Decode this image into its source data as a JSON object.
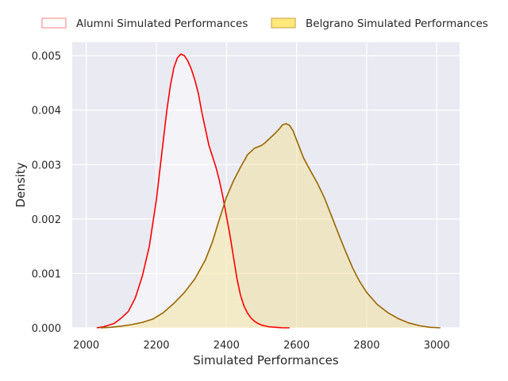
{
  "chart_data": {
    "type": "area",
    "title": "",
    "xlabel": "Simulated Performances",
    "ylabel": "Density",
    "xlim": [
      1960,
      3065
    ],
    "ylim": [
      0,
      0.00525
    ],
    "xticks": [
      2000,
      2200,
      2400,
      2600,
      2800,
      3000
    ],
    "yticks": [
      0.0,
      0.001,
      0.002,
      0.003,
      0.004,
      0.005
    ],
    "xtick_labels": [
      "2000",
      "2200",
      "2400",
      "2600",
      "2800",
      "3000"
    ],
    "ytick_labels": [
      "0.000",
      "0.001",
      "0.002",
      "0.003",
      "0.004",
      "0.005"
    ],
    "grid": true,
    "legend_position": "top",
    "series": [
      {
        "name": "Alumni Simulated Performances",
        "line_color": "#ff0000",
        "fill_color": "#ffffff",
        "fill_opacity": 0.45,
        "legend_edge_color": "#ff7f7f",
        "legend_face_color": "#ffffff",
        "x": [
          2030,
          2050,
          2080,
          2100,
          2120,
          2140,
          2160,
          2180,
          2200,
          2210,
          2220,
          2230,
          2240,
          2250,
          2260,
          2270,
          2280,
          2290,
          2300,
          2310,
          2320,
          2330,
          2340,
          2350,
          2360,
          2370,
          2380,
          2390,
          2400,
          2410,
          2420,
          2430,
          2440,
          2450,
          2460,
          2470,
          2480,
          2490,
          2500,
          2520,
          2540,
          2560,
          2580
        ],
        "y": [
          0.0,
          2e-05,
          8e-05,
          0.00018,
          0.0003,
          0.00055,
          0.00095,
          0.0015,
          0.00235,
          0.0029,
          0.00345,
          0.004,
          0.00445,
          0.00478,
          0.00496,
          0.00503,
          0.005,
          0.0049,
          0.00475,
          0.00455,
          0.0043,
          0.00395,
          0.00365,
          0.00335,
          0.00315,
          0.00295,
          0.0027,
          0.0024,
          0.00205,
          0.0017,
          0.0013,
          0.0009,
          0.0006,
          0.0004,
          0.00027,
          0.00018,
          0.00012,
          8e-05,
          5e-05,
          2e-05,
          1e-05,
          0.0,
          0.0
        ]
      },
      {
        "name": "Belgrano Simulated Performances",
        "line_color": "#996600",
        "fill_color": "#f5e08c",
        "fill_opacity": 0.45,
        "legend_edge_color": "#c8a040",
        "legend_face_color": "#ffe87c",
        "x": [
          2040,
          2070,
          2100,
          2130,
          2160,
          2190,
          2220,
          2250,
          2280,
          2310,
          2340,
          2360,
          2380,
          2400,
          2420,
          2440,
          2460,
          2480,
          2500,
          2510,
          2520,
          2530,
          2540,
          2550,
          2560,
          2570,
          2580,
          2590,
          2600,
          2620,
          2640,
          2660,
          2680,
          2700,
          2720,
          2740,
          2760,
          2780,
          2800,
          2830,
          2860,
          2890,
          2920,
          2950,
          2980,
          3010
        ],
        "y": [
          0.0,
          1e-05,
          3e-05,
          6e-05,
          0.0001,
          0.00016,
          0.00028,
          0.00045,
          0.00065,
          0.0009,
          0.00125,
          0.00158,
          0.002,
          0.0024,
          0.0027,
          0.00295,
          0.00318,
          0.0033,
          0.00335,
          0.0034,
          0.00346,
          0.00352,
          0.00358,
          0.00365,
          0.00373,
          0.00375,
          0.00372,
          0.00362,
          0.00345,
          0.00312,
          0.00288,
          0.00265,
          0.00238,
          0.00205,
          0.00172,
          0.0014,
          0.0011,
          0.00085,
          0.00065,
          0.00043,
          0.00028,
          0.00017,
          9e-05,
          4e-05,
          1e-05,
          0.0
        ]
      }
    ]
  }
}
